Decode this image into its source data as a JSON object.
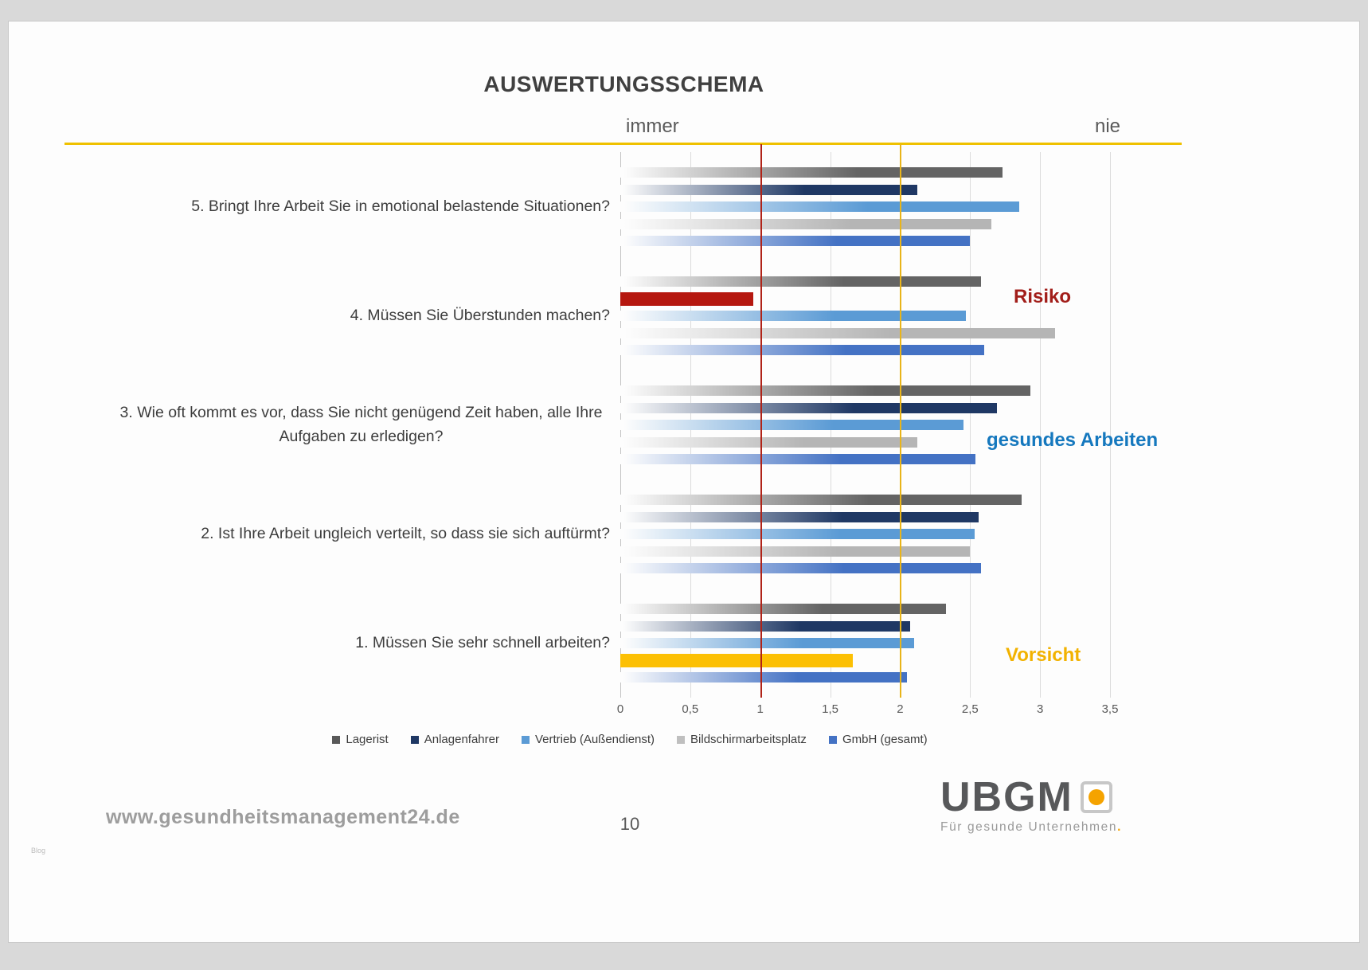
{
  "page": {
    "title": "AUSWERTUNGSSCHEMA",
    "page_number": "10",
    "website": "www.gesundheitsmanagement24.de",
    "watermark": "Blog",
    "logo": {
      "name": "UBGM",
      "tagline": "Für gesunde Unternehmen",
      "tagline_dot": ".",
      "accent_color": "#F5A300"
    }
  },
  "chart_data": {
    "type": "bar",
    "orientation": "horizontal",
    "title": "AUSWERTUNGSSCHEMA",
    "scale_left_label": "immer",
    "scale_right_label": "nie",
    "grid": true,
    "legend_position": "bottom",
    "axis": {
      "min": 0,
      "max": 3.5,
      "tick_values": [
        0,
        0.5,
        1,
        1.5,
        2,
        2.5,
        3,
        3.5
      ],
      "ticks": [
        "0",
        "0,5",
        "1",
        "1,5",
        "2",
        "2,5",
        "3",
        "3,5"
      ]
    },
    "series": [
      {
        "name": "Lagerist",
        "color": "#646464",
        "legend_color": "#595959"
      },
      {
        "name": "Anlagenfahrer",
        "color": "#1F3864",
        "legend_color": "#1F3864"
      },
      {
        "name": "Vertrieb (Außendienst)",
        "color": "#5B9BD5",
        "legend_color": "#5B9BD5"
      },
      {
        "name": "Bildschirmarbeitsplatz",
        "color": "#B5B5B5",
        "legend_color": "#BFBFBF"
      },
      {
        "name": "GmbH (gesamt)",
        "color": "#4472C4",
        "legend_color": "#4472C4"
      }
    ],
    "reference_lines": [
      {
        "value": 1,
        "color": "#B02318",
        "label": "Risiko"
      },
      {
        "value": 2,
        "color": "#E8B419",
        "label": "Vorsicht"
      }
    ],
    "annotations": [
      {
        "text": "Risiko",
        "color": "#A21E1A"
      },
      {
        "text": "gesundes Arbeiten",
        "color": "#1578BE"
      },
      {
        "text": "Vorsicht",
        "color": "#F2B200"
      }
    ],
    "groups": [
      {
        "label": "5. Bringt Ihre Arbeit Sie in emotional belastende Situationen?",
        "values": [
          2.73,
          2.12,
          2.85,
          2.65,
          2.5
        ]
      },
      {
        "label": "4. Müssen Sie Überstunden machen?",
        "values": [
          2.58,
          0.95,
          2.47,
          3.11,
          2.6
        ],
        "highlights": {
          "1": "#B5170F"
        }
      },
      {
        "label": "3. Wie oft kommt es vor, dass Sie nicht genügend Zeit haben, alle Ihre Aufgaben zu erledigen?",
        "values": [
          2.93,
          2.69,
          2.45,
          2.12,
          2.54
        ]
      },
      {
        "label": "2. Ist Ihre Arbeit ungleich verteilt, so dass sie sich auftürmt?",
        "values": [
          2.87,
          2.56,
          2.53,
          2.5,
          2.58
        ]
      },
      {
        "label": "1. Müssen Sie sehr schnell arbeiten?",
        "values": [
          2.33,
          2.07,
          2.1,
          1.66,
          2.05
        ],
        "highlights": {
          "3": "#FCC004"
        }
      }
    ]
  }
}
